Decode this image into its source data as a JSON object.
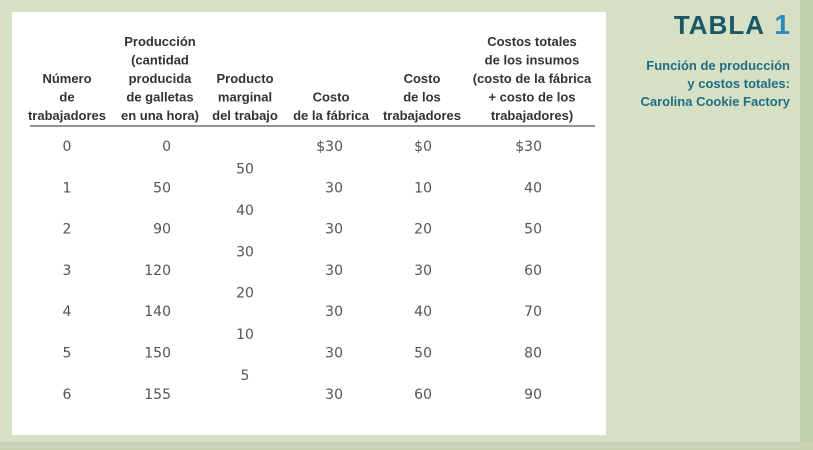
{
  "sidebar": {
    "label": "TABLA",
    "number": "1",
    "caption": [
      "Función de producción",
      "y costos totales:",
      "Carolina Cookie Factory"
    ]
  },
  "table": {
    "headers": [
      [
        "Número",
        "de",
        "trabajadores"
      ],
      [
        "Producción",
        "(cantidad",
        "producida",
        "de galletas",
        "en una hora)"
      ],
      [
        "Producto",
        "marginal",
        "del trabajo"
      ],
      [
        "Costo",
        "de la fábrica"
      ],
      [
        "Costo",
        "de los",
        "trabajadores"
      ],
      [
        "Costos totales",
        "de los insumos",
        "(costo de la fábrica",
        "+ costo de los",
        "trabajadores)"
      ]
    ],
    "rows": [
      [
        "0",
        "0",
        "$30",
        "$0",
        "$30"
      ],
      [
        "1",
        "50",
        "30",
        "10",
        "40"
      ],
      [
        "2",
        "90",
        "30",
        "20",
        "50"
      ],
      [
        "3",
        "120",
        "30",
        "30",
        "60"
      ],
      [
        "4",
        "140",
        "30",
        "40",
        "70"
      ],
      [
        "5",
        "150",
        "30",
        "50",
        "80"
      ],
      [
        "6",
        "155",
        "30",
        "60",
        "90"
      ]
    ],
    "marginal": [
      "50",
      "40",
      "30",
      "20",
      "10",
      "5"
    ]
  }
}
